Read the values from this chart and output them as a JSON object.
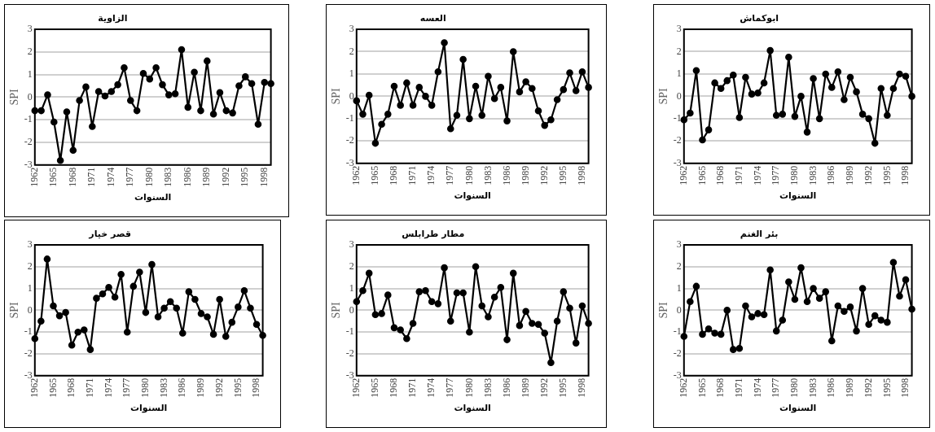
{
  "chart_data": [
    {
      "type": "line",
      "title": "الزاوية",
      "xlabel": "السنوات",
      "ylabel": "SPI",
      "categories": [
        "1962",
        null,
        null,
        "1965",
        null,
        null,
        "1968",
        null,
        null,
        "1971",
        null,
        null,
        "1974",
        null,
        null,
        "1977",
        null,
        null,
        "1980",
        null,
        null,
        "1983",
        null,
        null,
        "1986",
        null,
        null,
        "1989",
        null,
        null,
        "1992",
        null,
        null,
        "1995",
        null,
        null,
        "1998",
        null
      ],
      "ylim": [
        -3,
        3
      ],
      "yticks": [
        -3,
        -2,
        -1,
        0,
        1,
        2,
        3
      ],
      "grid": "y",
      "marker": "circle",
      "series": [
        {
          "color": "#000000",
          "values": [
            -0.6,
            -0.6,
            0.1,
            -1.1,
            -2.8,
            -0.65,
            -2.35,
            -0.15,
            0.45,
            -1.3,
            0.25,
            0.05,
            0.25,
            0.55,
            1.3,
            -0.15,
            -0.6,
            1.05,
            0.8,
            1.3,
            0.55,
            0.1,
            0.15,
            2.1,
            -0.45,
            1.1,
            -0.6,
            1.6,
            -0.75,
            0.2,
            -0.6,
            -0.7,
            0.5,
            0.9,
            0.6,
            -1.2,
            0.65,
            0.6
          ]
        }
      ]
    },
    {
      "type": "line",
      "title": "العسه",
      "xlabel": "السنوات",
      "ylabel": "SPI",
      "categories": [
        "1962",
        null,
        null,
        "1965",
        null,
        null,
        "1968",
        null,
        null,
        "1971",
        null,
        null,
        "1974",
        null,
        null,
        "1977",
        null,
        null,
        "1980",
        null,
        null,
        "1983",
        null,
        null,
        "1986",
        null,
        null,
        "1989",
        null,
        null,
        "1992",
        null,
        null,
        "1995",
        null,
        null,
        "1998",
        null
      ],
      "ylim": [
        -3,
        3
      ],
      "yticks": [
        -3,
        -2,
        -1,
        0,
        1,
        2,
        3
      ],
      "grid": "y",
      "marker": "circle",
      "series": [
        {
          "color": "#000000",
          "values": [
            -0.2,
            -0.8,
            0.05,
            -2.1,
            -1.25,
            -0.8,
            0.45,
            -0.4,
            0.6,
            -0.4,
            0.4,
            0.0,
            -0.4,
            1.1,
            2.4,
            -1.45,
            -0.85,
            1.65,
            -1.0,
            0.45,
            -0.85,
            0.9,
            -0.1,
            0.4,
            -1.1,
            2.0,
            0.2,
            0.65,
            0.35,
            -0.65,
            -1.3,
            -1.05,
            -0.15,
            0.3,
            1.05,
            0.25,
            1.1,
            0.4
          ]
        }
      ]
    },
    {
      "type": "line",
      "title": "ابوكماش",
      "xlabel": "السنوات",
      "ylabel": "SPI",
      "categories": [
        "1962",
        null,
        null,
        "1965",
        null,
        null,
        "1968",
        null,
        null,
        "1971",
        null,
        null,
        "1974",
        null,
        null,
        "1977",
        null,
        null,
        "1980",
        null,
        null,
        "1983",
        null,
        null,
        "1986",
        null,
        null,
        "1989",
        null,
        null,
        "1992",
        null,
        null,
        "1995",
        null,
        null,
        "1998",
        null
      ],
      "ylim": [
        -3,
        3
      ],
      "yticks": [
        -3,
        -2,
        -1,
        0,
        1,
        2,
        3
      ],
      "grid": "y",
      "marker": "circle",
      "series": [
        {
          "color": "#000000",
          "values": [
            -1.05,
            -0.75,
            1.15,
            -1.95,
            -1.5,
            0.6,
            0.35,
            0.7,
            0.95,
            -0.95,
            0.85,
            0.1,
            0.15,
            0.6,
            2.05,
            -0.85,
            -0.8,
            1.75,
            -0.9,
            0.0,
            -1.6,
            0.8,
            -1.0,
            1.0,
            0.4,
            1.1,
            -0.15,
            0.85,
            0.2,
            -0.8,
            -1.0,
            -2.1,
            0.35,
            -0.85,
            0.35,
            1.0,
            0.9,
            0.0
          ]
        }
      ]
    },
    {
      "type": "line",
      "title": "قصر خيار",
      "xlabel": "السنوات",
      "ylabel": "SPI",
      "categories": [
        "1962",
        null,
        null,
        "1965",
        null,
        null,
        "1968",
        null,
        null,
        "1971",
        null,
        null,
        "1974",
        null,
        null,
        "1977",
        null,
        null,
        "1980",
        null,
        null,
        "1983",
        null,
        null,
        "1986",
        null,
        null,
        "1989",
        null,
        null,
        "1992",
        null,
        null,
        "1995",
        null,
        null,
        "1998",
        null
      ],
      "ylim": [
        -3,
        3
      ],
      "yticks": [
        -3,
        -2,
        -1,
        0,
        1,
        2,
        3
      ],
      "grid": "y",
      "marker": "circle",
      "series": [
        {
          "color": "#000000",
          "values": [
            -1.3,
            -0.5,
            2.35,
            0.2,
            -0.25,
            -0.1,
            -1.6,
            -1.0,
            -0.9,
            -1.8,
            0.55,
            0.75,
            1.05,
            0.6,
            1.65,
            -1.0,
            1.1,
            1.75,
            -0.1,
            2.1,
            -0.3,
            0.1,
            0.4,
            0.1,
            -1.05,
            0.85,
            0.5,
            -0.15,
            -0.3,
            -1.1,
            0.5,
            -1.2,
            -0.55,
            0.15,
            0.9,
            0.1,
            -0.65,
            -1.15
          ]
        }
      ]
    },
    {
      "type": "line",
      "title": "مطار طرابلس",
      "xlabel": "السنوات",
      "ylabel": "SPI",
      "categories": [
        "1962",
        null,
        null,
        "1965",
        null,
        null,
        "1968",
        null,
        null,
        "1971",
        null,
        null,
        "1974",
        null,
        null,
        "1977",
        null,
        null,
        "1980",
        null,
        null,
        "1983",
        null,
        null,
        "1986",
        null,
        null,
        "1989",
        null,
        null,
        "1992",
        null,
        null,
        "1995",
        null,
        null,
        "1998",
        null
      ],
      "ylim": [
        -3,
        3
      ],
      "yticks": [
        -3,
        -2,
        -1,
        0,
        1,
        2,
        3
      ],
      "grid": "y",
      "marker": "circle",
      "series": [
        {
          "color": "#000000",
          "values": [
            0.4,
            0.9,
            1.7,
            -0.2,
            -0.15,
            0.7,
            -0.8,
            -0.9,
            -1.3,
            -0.6,
            0.85,
            0.9,
            0.4,
            0.3,
            1.95,
            -0.5,
            0.8,
            0.8,
            -1.0,
            2.0,
            0.2,
            -0.3,
            0.6,
            1.05,
            -1.35,
            1.7,
            -0.7,
            -0.05,
            -0.6,
            -0.65,
            -1.05,
            -2.4,
            -0.5,
            0.85,
            0.1,
            -1.5,
            0.2,
            -0.6
          ]
        }
      ]
    },
    {
      "type": "line",
      "title": "بئر الغنم",
      "xlabel": "السنوات",
      "ylabel": "SPI",
      "categories": [
        "1962",
        null,
        null,
        "1965",
        null,
        null,
        "1968",
        null,
        null,
        "1971",
        null,
        null,
        "1974",
        null,
        null,
        "1977",
        null,
        null,
        "1980",
        null,
        null,
        "1983",
        null,
        null,
        "1986",
        null,
        null,
        "1989",
        null,
        null,
        "1992",
        null,
        null,
        "1995",
        null,
        null,
        "1998",
        null
      ],
      "ylim": [
        -3,
        3
      ],
      "yticks": [
        -3,
        -2,
        -1,
        0,
        1,
        2,
        3
      ],
      "grid": "y",
      "marker": "circle",
      "series": [
        {
          "color": "#000000",
          "values": [
            -1.2,
            0.4,
            1.1,
            -1.1,
            -0.85,
            -1.05,
            -1.1,
            0.0,
            -1.8,
            -1.75,
            0.2,
            -0.3,
            -0.15,
            -0.2,
            1.85,
            -0.95,
            -0.45,
            1.3,
            0.5,
            1.95,
            0.4,
            1.0,
            0.55,
            0.85,
            -1.4,
            0.2,
            -0.05,
            0.15,
            -0.95,
            1.0,
            -0.65,
            -0.25,
            -0.45,
            -0.55,
            2.2,
            0.65,
            1.4,
            0.05
          ]
        }
      ]
    }
  ]
}
